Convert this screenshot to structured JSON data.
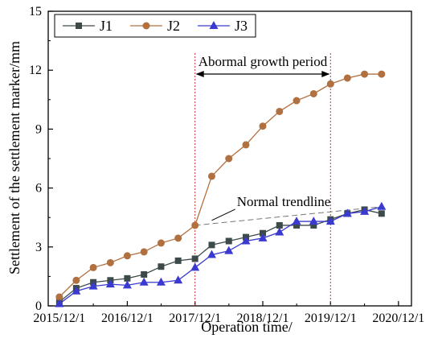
{
  "chart_data": {
    "type": "line",
    "xlabel": "Operation time/",
    "ylabel": "Settlement of the settlement marker/mm",
    "x_ticks": [
      "2015/12/1",
      "2016/12/1",
      "2017/12/1",
      "2018/12/1",
      "2019/12/1",
      "2020/12/1"
    ],
    "x_range": [
      "2015/12/1",
      "2020/12/1"
    ],
    "y_ticks": [
      0,
      3,
      6,
      9,
      12,
      15
    ],
    "ylim": [
      0,
      15
    ],
    "grid": false,
    "legend_position": "top-left",
    "series": [
      {
        "name": "J1",
        "color": "#3d4a4a",
        "marker": "square",
        "x": [
          "2015/12/1",
          "2016/3/1",
          "2016/6/1",
          "2016/9/1",
          "2016/12/1",
          "2017/3/1",
          "2017/6/1",
          "2017/9/1",
          "2017/12/1",
          "2018/3/1",
          "2018/6/1",
          "2018/9/1",
          "2018/12/1",
          "2019/3/1",
          "2019/6/1",
          "2019/9/1",
          "2019/12/1",
          "2020/3/1",
          "2020/6/1",
          "2020/9/1"
        ],
        "values": [
          0.2,
          0.9,
          1.2,
          1.3,
          1.4,
          1.6,
          2.0,
          2.3,
          2.4,
          3.1,
          3.3,
          3.5,
          3.7,
          4.1,
          4.1,
          4.1,
          4.4,
          4.7,
          4.9,
          4.7
        ]
      },
      {
        "name": "J2",
        "color": "#b07040",
        "marker": "circle",
        "x": [
          "2015/12/1",
          "2016/3/1",
          "2016/6/1",
          "2016/9/1",
          "2016/12/1",
          "2017/3/1",
          "2017/6/1",
          "2017/9/1",
          "2017/12/1",
          "2018/3/1",
          "2018/6/1",
          "2018/9/1",
          "2018/12/1",
          "2019/3/1",
          "2019/6/1",
          "2019/9/1",
          "2019/12/1",
          "2020/3/1",
          "2020/6/1",
          "2020/9/1"
        ],
        "values": [
          0.45,
          1.3,
          1.95,
          2.2,
          2.55,
          2.75,
          3.2,
          3.45,
          4.1,
          6.6,
          7.5,
          8.2,
          9.15,
          9.9,
          10.45,
          10.8,
          11.3,
          11.6,
          11.8,
          11.8
        ]
      },
      {
        "name": "J3",
        "color": "#3a3ad0",
        "marker": "triangle",
        "x": [
          "2015/12/1",
          "2016/3/1",
          "2016/6/1",
          "2016/9/1",
          "2016/12/1",
          "2017/3/1",
          "2017/6/1",
          "2017/9/1",
          "2017/12/1",
          "2018/3/1",
          "2018/6/1",
          "2018/9/1",
          "2018/12/1",
          "2019/3/1",
          "2019/6/1",
          "2019/9/1",
          "2019/12/1",
          "2020/3/1",
          "2020/6/1",
          "2020/9/1"
        ],
        "values": [
          0.1,
          0.75,
          1.0,
          1.1,
          1.05,
          1.2,
          1.2,
          1.3,
          1.95,
          2.6,
          2.8,
          3.3,
          3.45,
          3.75,
          4.3,
          4.3,
          4.3,
          4.7,
          4.8,
          5.05
        ]
      }
    ],
    "annotations": {
      "period_label": "Abormal growth period",
      "period_start": "2017/12/1",
      "period_end": "2019/12/1",
      "trend_label": "Normal trendline",
      "trendline": {
        "x": [
          "2017/12/1",
          "2020/9/1"
        ],
        "values": [
          4.1,
          5.05
        ]
      }
    }
  }
}
